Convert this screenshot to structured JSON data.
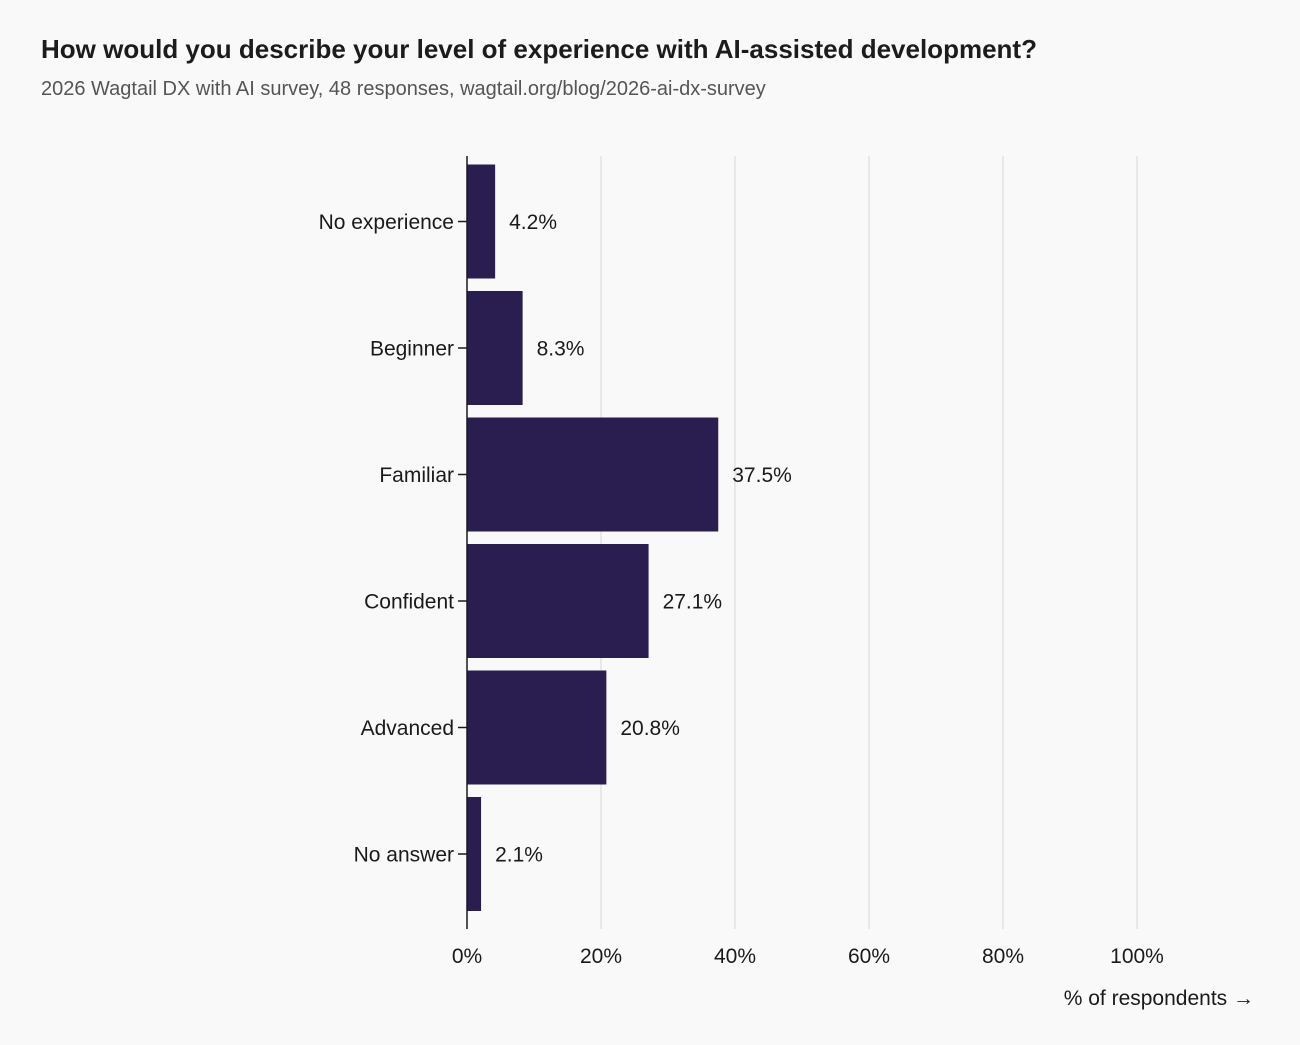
{
  "chart_data": {
    "type": "bar",
    "orientation": "horizontal",
    "title": "How would you describe your level of experience with AI-assisted development?",
    "subtitle": "2026 Wagtail DX with AI survey, 48 responses, wagtail.org/blog/2026-ai-dx-survey",
    "categories": [
      "No experience",
      "Beginner",
      "Familiar",
      "Confident",
      "Advanced",
      "No answer"
    ],
    "values": [
      4.2,
      8.3,
      37.5,
      27.1,
      20.8,
      2.1
    ],
    "value_labels": [
      "4.2%",
      "8.3%",
      "37.5%",
      "27.1%",
      "20.8%",
      "2.1%"
    ],
    "xlabel": "% of respondents →",
    "ylabel": "",
    "xlim": [
      0,
      100
    ],
    "x_ticks": [
      0,
      20,
      40,
      60,
      80,
      100
    ],
    "x_tick_labels": [
      "0%",
      "20%",
      "40%",
      "60%",
      "80%",
      "100%"
    ],
    "grid": true,
    "colors": {
      "bar": "#2a1d50",
      "grid": "#e2e2e2",
      "axis": "#1a1a1a",
      "background": "#f9f9f9"
    }
  }
}
